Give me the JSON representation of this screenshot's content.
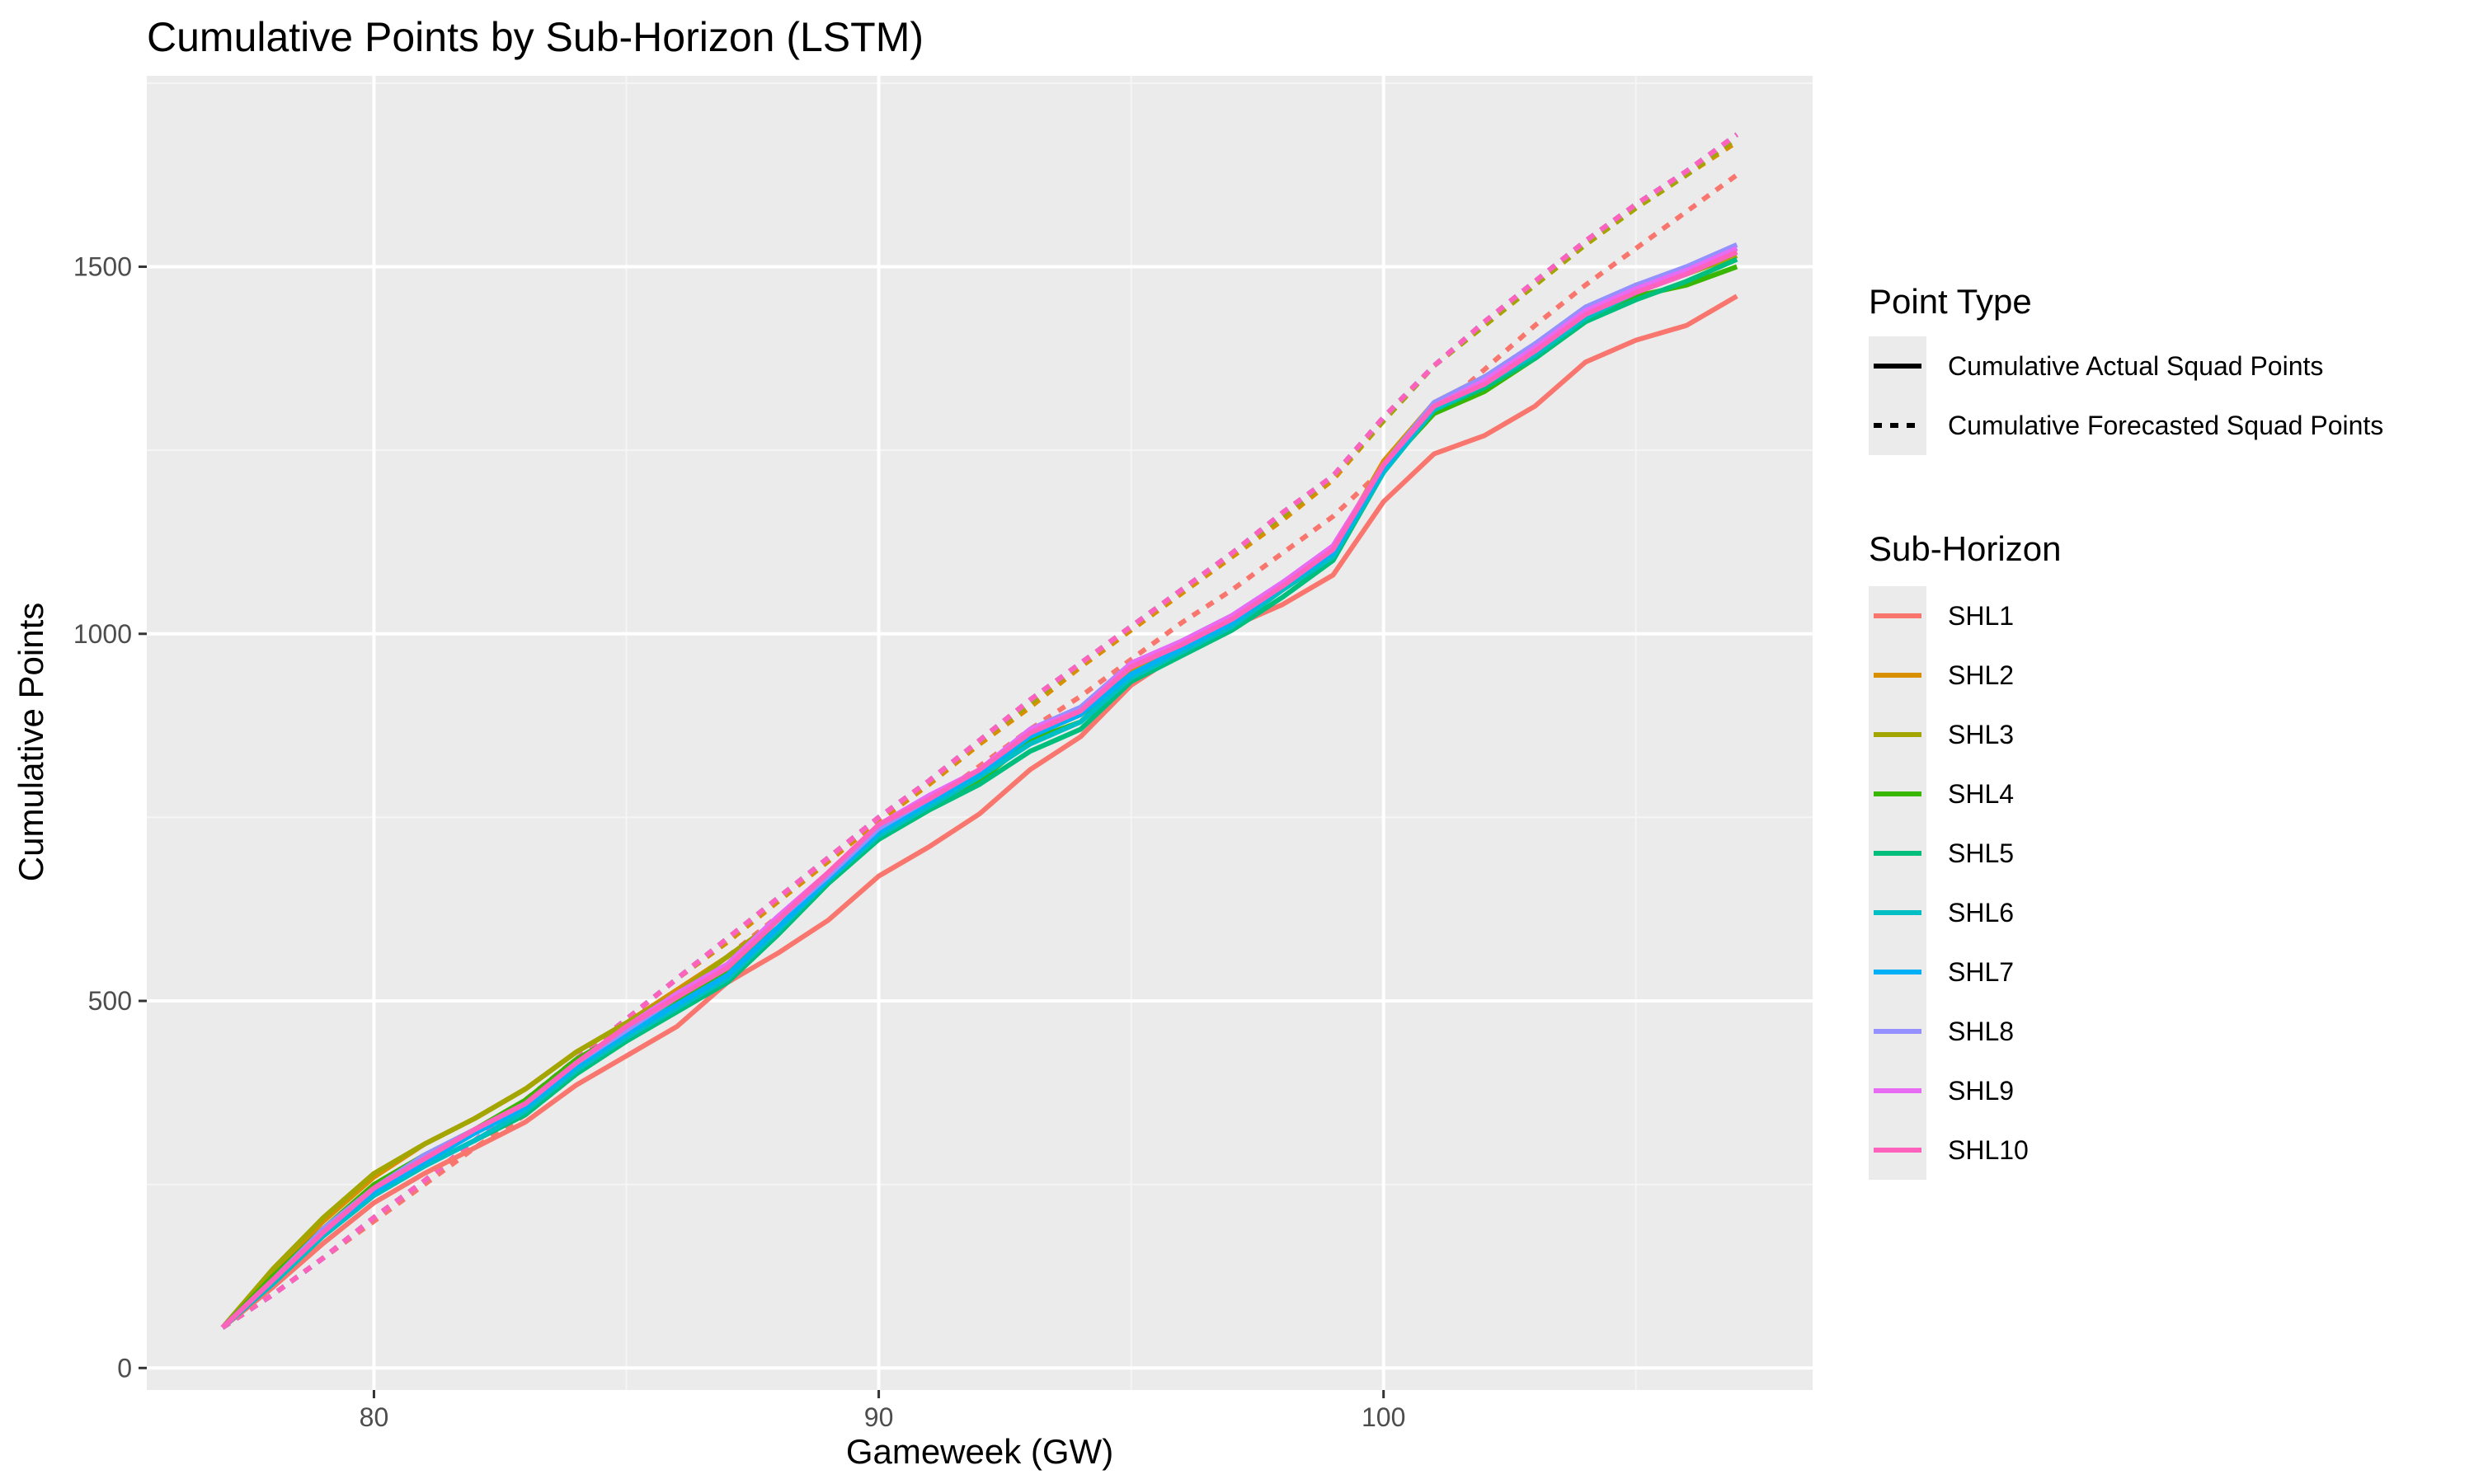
{
  "chart_data": {
    "type": "line",
    "title": "Cumulative Points by Sub-Horizon (LSTM)",
    "xlabel": "Gameweek (GW)",
    "ylabel": "Cumulative Points",
    "xlim": [
      75.5,
      108.5
    ],
    "ylim": [
      -30,
      1760
    ],
    "x_ticks": [
      80,
      90,
      100
    ],
    "y_ticks": [
      0,
      500,
      1000,
      1500
    ],
    "x_tick_labels": [
      "80",
      "90",
      "100"
    ],
    "y_tick_labels": [
      "0",
      "500",
      "1000",
      "1500"
    ],
    "grid": true,
    "x": [
      77,
      78,
      79,
      80,
      81,
      82,
      83,
      84,
      85,
      86,
      87,
      88,
      89,
      90,
      91,
      92,
      93,
      94,
      95,
      96,
      97,
      98,
      99,
      100,
      101,
      102,
      103,
      104,
      105,
      106,
      107
    ],
    "linetype_legend": {
      "title": "Point Type",
      "entries": [
        {
          "label": "Cumulative Actual Squad Points",
          "dash": "solid"
        },
        {
          "label": "Cumulative Forecasted Squad Points",
          "dash": "dashed"
        }
      ]
    },
    "color_legend": {
      "title": "Sub-Horizon",
      "position": "right"
    },
    "series": [
      {
        "name": "SHL1",
        "color": "#F8766D",
        "actual": [
          55,
          110,
          170,
          225,
          265,
          300,
          335,
          385,
          425,
          465,
          525,
          565,
          610,
          670,
          710,
          755,
          815,
          860,
          930,
          975,
          1010,
          1040,
          1080,
          1180,
          1245,
          1270,
          1310,
          1370,
          1400,
          1420,
          1460
        ],
        "forecast": [
          55,
          100,
          150,
          200,
          250,
          300,
          345,
          400,
          455,
          510,
          560,
          615,
          670,
          720,
          770,
          820,
          870,
          915,
          965,
          1015,
          1060,
          1110,
          1160,
          1225,
          1300,
          1360,
          1420,
          1475,
          1525,
          1575,
          1625
        ]
      },
      {
        "name": "SHL2",
        "color": "#D89000",
        "actual": [
          55,
          130,
          200,
          260,
          305,
          340,
          380,
          430,
          470,
          515,
          560,
          610,
          670,
          730,
          770,
          810,
          860,
          890,
          950,
          985,
          1020,
          1070,
          1115,
          1235,
          1315,
          1350,
          1390,
          1440,
          1475,
          1495,
          1520
        ],
        "forecast": [
          55,
          100,
          150,
          205,
          255,
          310,
          365,
          420,
          475,
          530,
          580,
          635,
          690,
          745,
          795,
          850,
          900,
          955,
          1005,
          1055,
          1105,
          1155,
          1210,
          1290,
          1365,
          1420,
          1475,
          1530,
          1580,
          1625,
          1670
        ]
      },
      {
        "name": "SHL3",
        "color": "#A3A500",
        "actual": [
          55,
          135,
          205,
          265,
          305,
          340,
          380,
          430,
          470,
          510,
          560,
          610,
          670,
          725,
          770,
          810,
          865,
          895,
          955,
          985,
          1020,
          1065,
          1110,
          1230,
          1310,
          1345,
          1385,
          1440,
          1470,
          1490,
          1515
        ],
        "forecast": [
          55,
          100,
          150,
          205,
          255,
          310,
          365,
          420,
          475,
          530,
          585,
          640,
          695,
          750,
          800,
          855,
          905,
          960,
          1010,
          1060,
          1110,
          1160,
          1215,
          1290,
          1365,
          1420,
          1475,
          1530,
          1580,
          1625,
          1675
        ]
      },
      {
        "name": "SHL4",
        "color": "#39B600",
        "actual": [
          55,
          125,
          190,
          250,
          290,
          325,
          365,
          420,
          460,
          500,
          540,
          600,
          665,
          725,
          765,
          800,
          855,
          880,
          945,
          975,
          1010,
          1060,
          1105,
          1225,
          1300,
          1330,
          1375,
          1425,
          1460,
          1475,
          1500
        ],
        "forecast": [
          55,
          100,
          150,
          205,
          255,
          310,
          365,
          420,
          475,
          530,
          585,
          640,
          695,
          750,
          800,
          855,
          910,
          960,
          1010,
          1060,
          1110,
          1165,
          1215,
          1295,
          1365,
          1425,
          1480,
          1535,
          1585,
          1630,
          1680
        ]
      },
      {
        "name": "SHL5",
        "color": "#00BF7D",
        "actual": [
          55,
          115,
          180,
          235,
          275,
          310,
          345,
          400,
          445,
          485,
          525,
          590,
          660,
          720,
          760,
          795,
          840,
          870,
          935,
          970,
          1005,
          1050,
          1100,
          1220,
          1305,
          1335,
          1375,
          1425,
          1455,
          1480,
          1510
        ],
        "forecast": [
          55,
          100,
          150,
          205,
          255,
          310,
          365,
          420,
          475,
          530,
          585,
          640,
          695,
          750,
          800,
          855,
          910,
          960,
          1010,
          1060,
          1110,
          1165,
          1215,
          1295,
          1365,
          1425,
          1480,
          1535,
          1585,
          1630,
          1680
        ]
      },
      {
        "name": "SHL6",
        "color": "#00BFC4",
        "actual": [
          55,
          115,
          180,
          235,
          275,
          310,
          350,
          405,
          450,
          490,
          530,
          595,
          665,
          725,
          765,
          805,
          850,
          880,
          940,
          975,
          1010,
          1060,
          1105,
          1220,
          1305,
          1340,
          1380,
          1430,
          1465,
          1490,
          1520
        ],
        "forecast": [
          55,
          100,
          150,
          205,
          255,
          310,
          365,
          420,
          475,
          530,
          585,
          640,
          695,
          750,
          800,
          855,
          910,
          960,
          1010,
          1060,
          1110,
          1165,
          1215,
          1295,
          1365,
          1425,
          1480,
          1535,
          1585,
          1630,
          1680
        ]
      },
      {
        "name": "SHL7",
        "color": "#00B0F6",
        "actual": [
          55,
          120,
          185,
          240,
          280,
          320,
          355,
          410,
          455,
          495,
          535,
          600,
          665,
          730,
          770,
          810,
          860,
          890,
          945,
          980,
          1015,
          1065,
          1110,
          1225,
          1310,
          1345,
          1385,
          1440,
          1470,
          1495,
          1525
        ],
        "forecast": [
          55,
          100,
          150,
          205,
          255,
          310,
          365,
          420,
          475,
          530,
          585,
          640,
          695,
          750,
          800,
          855,
          910,
          960,
          1010,
          1060,
          1110,
          1165,
          1215,
          1295,
          1365,
          1425,
          1480,
          1535,
          1585,
          1630,
          1680
        ]
      },
      {
        "name": "SHL8",
        "color": "#9590FF",
        "actual": [
          55,
          120,
          190,
          245,
          290,
          325,
          360,
          415,
          460,
          505,
          545,
          610,
          670,
          735,
          775,
          815,
          870,
          900,
          960,
          990,
          1025,
          1070,
          1115,
          1230,
          1315,
          1350,
          1395,
          1445,
          1475,
          1500,
          1530
        ],
        "forecast": [
          55,
          100,
          150,
          205,
          255,
          310,
          365,
          420,
          475,
          530,
          585,
          640,
          695,
          750,
          800,
          855,
          910,
          960,
          1010,
          1060,
          1110,
          1165,
          1215,
          1295,
          1365,
          1425,
          1480,
          1535,
          1585,
          1630,
          1680
        ]
      },
      {
        "name": "SHL9",
        "color": "#E76BF3",
        "actual": [
          55,
          120,
          185,
          245,
          285,
          325,
          360,
          415,
          465,
          510,
          550,
          615,
          675,
          740,
          780,
          815,
          870,
          895,
          960,
          990,
          1025,
          1070,
          1120,
          1230,
          1310,
          1345,
          1390,
          1440,
          1470,
          1495,
          1525
        ],
        "forecast": [
          55,
          100,
          150,
          205,
          255,
          310,
          365,
          420,
          475,
          530,
          585,
          640,
          695,
          750,
          800,
          855,
          910,
          960,
          1010,
          1060,
          1110,
          1165,
          1215,
          1295,
          1365,
          1425,
          1480,
          1535,
          1585,
          1630,
          1680
        ]
      },
      {
        "name": "SHL10",
        "color": "#FF62BC",
        "actual": [
          55,
          120,
          185,
          245,
          285,
          325,
          360,
          415,
          465,
          505,
          545,
          610,
          675,
          740,
          775,
          815,
          865,
          895,
          955,
          985,
          1020,
          1065,
          1115,
          1230,
          1310,
          1340,
          1385,
          1435,
          1465,
          1490,
          1520
        ],
        "forecast": [
          55,
          100,
          150,
          205,
          255,
          310,
          365,
          420,
          475,
          530,
          585,
          640,
          695,
          750,
          800,
          855,
          910,
          960,
          1010,
          1060,
          1110,
          1165,
          1215,
          1295,
          1365,
          1425,
          1480,
          1535,
          1585,
          1630,
          1680
        ]
      }
    ]
  },
  "colors": {
    "panel_bg": "#EBEBEB",
    "grid_major": "#FFFFFF",
    "grid_minor": "#F5F5F5",
    "legend_key_bg": "#EBEBEB"
  }
}
